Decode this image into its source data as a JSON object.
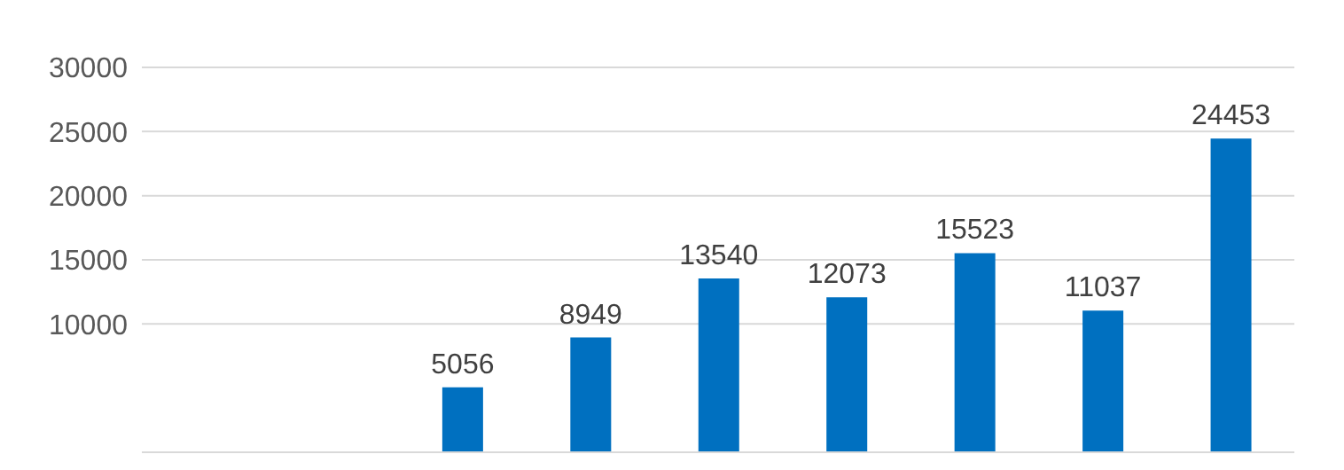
{
  "chart_data": {
    "type": "bar",
    "categories": [
      null,
      null,
      null,
      null,
      null,
      null,
      null,
      null,
      null
    ],
    "values": [
      null,
      null,
      5056,
      8949,
      13540,
      12073,
      15523,
      11037,
      24453
    ],
    "color": "#0070c0",
    "ylim": [
      0,
      30000
    ],
    "yticks": [
      10000,
      15000,
      20000,
      25000,
      30000
    ],
    "grid": "y",
    "data_labels": true,
    "tick_labels": "y"
  }
}
